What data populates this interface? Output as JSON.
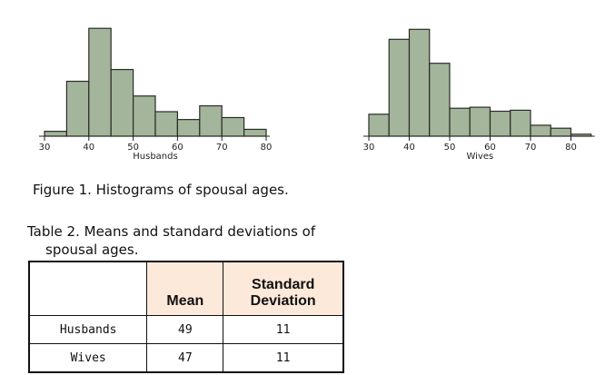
{
  "chart_data": [
    {
      "type": "bar",
      "xlabel": "Husbands",
      "bins": [
        [
          30,
          35
        ],
        [
          35,
          40
        ],
        [
          40,
          45
        ],
        [
          45,
          50
        ],
        [
          50,
          55
        ],
        [
          55,
          60
        ],
        [
          60,
          65
        ],
        [
          65,
          70
        ],
        [
          70,
          75
        ],
        [
          75,
          80
        ]
      ],
      "values": [
        5,
        56,
        110,
        68,
        41,
        25,
        17,
        31,
        19,
        7
      ],
      "xlim": [
        30,
        80
      ],
      "xticks": [
        30,
        40,
        50,
        60,
        70,
        80
      ],
      "ylim": [
        0,
        115
      ]
    },
    {
      "type": "bar",
      "xlabel": "Wives",
      "bins": [
        [
          30,
          35
        ],
        [
          35,
          40
        ],
        [
          40,
          45
        ],
        [
          45,
          50
        ],
        [
          50,
          55
        ],
        [
          55,
          60
        ],
        [
          60,
          65
        ],
        [
          65,
          70
        ],
        [
          70,
          75
        ],
        [
          75,
          80
        ],
        [
          80,
          85
        ]
      ],
      "values": [
        22,
        97,
        107,
        73,
        28,
        29,
        25,
        26,
        11,
        8,
        2
      ],
      "xlim": [
        30,
        85
      ],
      "xticks": [
        30,
        40,
        50,
        60,
        70,
        80
      ],
      "ylim": [
        0,
        115
      ]
    }
  ],
  "figure_caption": "Figure 1. Histograms of spousal ages.",
  "table": {
    "caption_line1": "Table 2. Means and standard deviations of",
    "caption_line2": "spousal ages.",
    "headers": [
      "",
      "Mean",
      "Standard Deviation"
    ],
    "rows": [
      [
        "Husbands",
        "49",
        "11"
      ],
      [
        "Wives",
        "47",
        "11"
      ]
    ]
  },
  "colors": {
    "bar_fill": "#a3b59a",
    "bar_stroke": "#2b2b2b",
    "header_fill": "#fde9d9"
  }
}
